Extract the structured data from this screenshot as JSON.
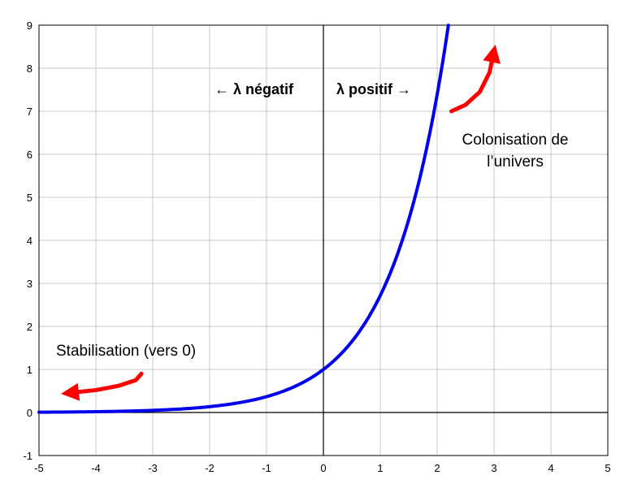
{
  "chart_data": {
    "type": "line",
    "title": "",
    "xlabel": "",
    "ylabel": "",
    "xlim": [
      -5,
      5
    ],
    "ylim": [
      -1,
      9
    ],
    "grid": true,
    "x_ticks": [
      "-5",
      "-4",
      "-3",
      "-2",
      "-1",
      "0",
      "1",
      "2",
      "3",
      "4",
      "5"
    ],
    "y_ticks": [
      "-1",
      "0",
      "1",
      "2",
      "3",
      "4",
      "5",
      "6",
      "7",
      "8",
      "9"
    ],
    "series": [
      {
        "function": "exp(x)",
        "color": "#0000ee",
        "x": [
          -5,
          -4.5,
          -4,
          -3.5,
          -3,
          -2.5,
          -2,
          -1.5,
          -1,
          -0.5,
          0,
          0.5,
          1,
          1.25,
          1.5,
          1.75,
          2,
          2.197
        ],
        "y": [
          0.007,
          0.011,
          0.018,
          0.03,
          0.05,
          0.082,
          0.135,
          0.223,
          0.368,
          0.607,
          1.0,
          1.649,
          2.718,
          3.49,
          4.482,
          5.755,
          7.389,
          9.0
        ]
      }
    ],
    "annotations": {
      "lambda_negative": "← λ négatif",
      "lambda_positive": "λ positif →",
      "stabilisation": "Stabilisation (vers 0)",
      "colonisation_line1": "Colonisation de",
      "colonisation_line2": "l’univers"
    },
    "arrows": [
      {
        "name": "stabilisation-arrow",
        "color": "#ff0000",
        "x": [
          -3.2,
          -3.3,
          -3.6,
          -4.0,
          -4.5
        ],
        "y": [
          0.9,
          0.75,
          0.62,
          0.52,
          0.45
        ]
      },
      {
        "name": "colonisation-arrow",
        "color": "#ff0000",
        "x": [
          2.25,
          2.5,
          2.75,
          2.92,
          3.0
        ],
        "y": [
          7.0,
          7.15,
          7.45,
          7.9,
          8.4
        ]
      }
    ]
  }
}
